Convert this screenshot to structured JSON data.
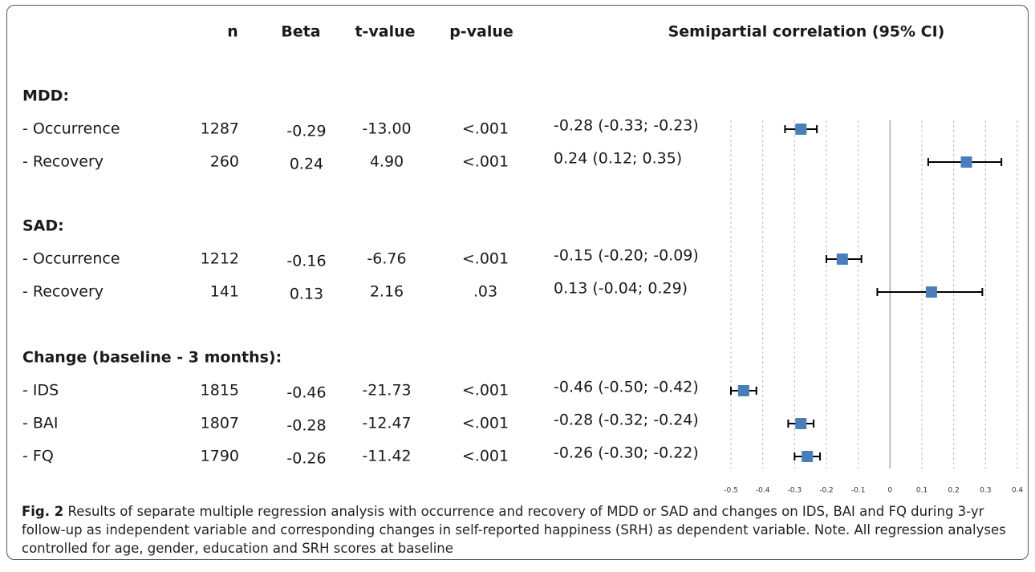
{
  "chart_data": {
    "type": "forest",
    "columns": [
      "n",
      "Beta",
      "t-value",
      "p-value",
      "Semipartial correlation (95% CI)"
    ],
    "groups": [
      {
        "label": "MDD:",
        "rows": [
          {
            "label": "- Occurrence",
            "cells": [
              1287,
              -0.29,
              "-13.00",
              "<.001",
              "-0.28 (-0.33; -0.23)"
            ],
            "r": -0.28,
            "ci": [
              -0.33,
              -0.23
            ]
          },
          {
            "label": "- Recovery",
            "cells": [
              260,
              0.24,
              "4.90",
              "<.001",
              "0.24 (0.12; 0.35)"
            ],
            "r": 0.24,
            "ci": [
              0.12,
              0.35
            ]
          }
        ]
      },
      {
        "label": "SAD:",
        "rows": [
          {
            "label": "- Occurrence",
            "cells": [
              1212,
              -0.16,
              "-6.76",
              "<.001",
              "-0.15 (-0.20; -0.09)"
            ],
            "r": -0.15,
            "ci": [
              -0.2,
              -0.09
            ]
          },
          {
            "label": "- Recovery",
            "cells": [
              141,
              0.13,
              "2.16",
              ".03",
              "0.13 (-0.04; 0.29)"
            ],
            "r": 0.13,
            "ci": [
              -0.04,
              0.29
            ]
          }
        ]
      },
      {
        "label": "Change (baseline - 3 months):",
        "rows": [
          {
            "label": "- IDS",
            "cells": [
              1815,
              -0.46,
              "-21.73",
              "<.001",
              "-0.46 (-0.50; -0.42)"
            ],
            "r": -0.46,
            "ci": [
              -0.5,
              -0.42
            ]
          },
          {
            "label": "- BAI",
            "cells": [
              1807,
              -0.28,
              "-12.47",
              "<.001",
              "-0.28 (-0.32; -0.24)"
            ],
            "r": -0.28,
            "ci": [
              -0.32,
              -0.24
            ]
          },
          {
            "label": "- FQ",
            "cells": [
              1790,
              -0.26,
              "-11.42",
              "<.001",
              "-0.26 (-0.30; -0.22)"
            ],
            "r": -0.26,
            "ci": [
              -0.3,
              -0.22
            ]
          }
        ]
      }
    ],
    "color": "#4a7ebb",
    "xlim": [
      -0.5,
      0.4
    ],
    "xticks": [
      -0.5,
      -0.4,
      -0.3,
      -0.2,
      -0.1,
      0,
      0.1,
      0.2,
      0.3,
      0.4
    ],
    "grid": true,
    "caption_label": "Fig. 2",
    "caption": "Results of separate multiple regression analysis with occurrence and recovery of MDD or SAD and changes on IDS, BAI and FQ during 3-yr follow-up as independent variable and corresponding changes in self-reported happiness (SRH) as dependent variable. Note. All regression analyses controlled for age, gender, education and SRH scores at baseline"
  }
}
